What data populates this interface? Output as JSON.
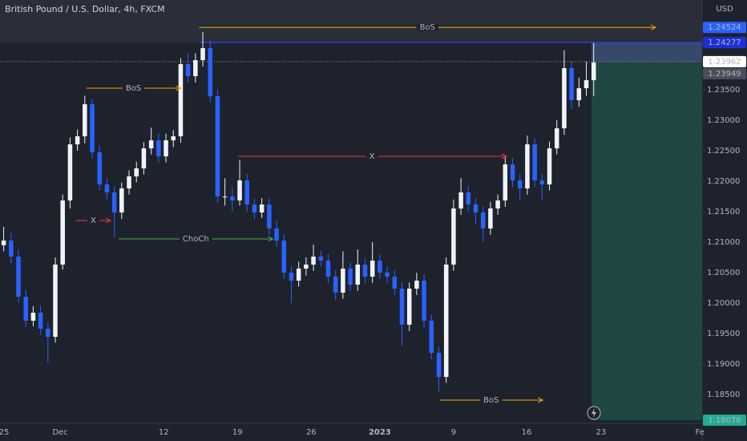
{
  "chart_data": {
    "type": "candlestick",
    "title": "British Pound / U.S. Dollar, 4h, FXCM",
    "y_axis_label": "USD",
    "up_color": "#f0f3fa",
    "down_color": "#2962ff",
    "xlim": [
      -0.5,
      94.7
    ],
    "ylim": [
      1.18026,
      1.24974
    ],
    "xticks": [
      {
        "value": 0.04,
        "label": "25"
      },
      {
        "value": 7.65,
        "label": "Dec"
      },
      {
        "value": 21.7,
        "label": "12"
      },
      {
        "value": 31.7,
        "label": "19"
      },
      {
        "value": 41.7,
        "label": "26"
      },
      {
        "value": 51.0,
        "label": "2023"
      },
      {
        "value": 61.0,
        "label": "9"
      },
      {
        "value": 70.9,
        "label": "16"
      },
      {
        "value": 81.0,
        "label": "23"
      },
      {
        "value": 94.4,
        "label": "Fe"
      }
    ],
    "yticks": [
      {
        "value": 1.185,
        "label": "1.18500"
      },
      {
        "value": 1.19,
        "label": "1.19000"
      },
      {
        "value": 1.195,
        "label": "1.19500"
      },
      {
        "value": 1.2,
        "label": "1.20000"
      },
      {
        "value": 1.205,
        "label": "1.20500"
      },
      {
        "value": 1.21,
        "label": "1.21000"
      },
      {
        "value": 1.215,
        "label": "1.21500"
      },
      {
        "value": 1.22,
        "label": "1.22000"
      },
      {
        "value": 1.225,
        "label": "1.22500"
      },
      {
        "value": 1.23,
        "label": "1.23000"
      },
      {
        "value": 1.235,
        "label": "1.23500"
      }
    ],
    "candles": [
      [
        1.2095,
        1.2125,
        1.2085,
        1.21026
      ],
      [
        1.21026,
        1.2115,
        1.2065,
        1.20763
      ],
      [
        1.20763,
        1.2088,
        1.2,
        1.20105
      ],
      [
        1.20105,
        1.2021,
        1.196,
        1.19711
      ],
      [
        1.19711,
        1.1995,
        1.1962,
        1.19842
      ],
      [
        1.19842,
        1.1996,
        1.1948,
        1.19579
      ],
      [
        1.19579,
        1.1968,
        1.1902,
        1.19447
      ],
      [
        1.19447,
        1.2075,
        1.1935,
        1.20632
      ],
      [
        1.20632,
        1.2178,
        1.2055,
        1.21684
      ],
      [
        1.21684,
        1.2272,
        1.2155,
        1.22605
      ],
      [
        1.22605,
        1.2285,
        1.225,
        1.22737
      ],
      [
        1.22737,
        1.234,
        1.2262,
        1.23263
      ],
      [
        1.23263,
        1.2335,
        1.2237,
        1.22474
      ],
      [
        1.22474,
        1.2258,
        1.2185,
        1.21947
      ],
      [
        1.21947,
        1.2205,
        1.217,
        1.21816
      ],
      [
        1.21816,
        1.2192,
        1.2108,
        1.21487
      ],
      [
        1.21487,
        1.2198,
        1.2138,
        1.21882
      ],
      [
        1.21882,
        1.2218,
        1.2178,
        1.22079
      ],
      [
        1.22079,
        1.2232,
        1.2198,
        1.22211
      ],
      [
        1.22211,
        1.2264,
        1.2211,
        1.22539
      ],
      [
        1.22539,
        1.2288,
        1.2244,
        1.22671
      ],
      [
        1.22671,
        1.2278,
        1.223,
        1.22408
      ],
      [
        1.22408,
        1.2278,
        1.2231,
        1.22671
      ],
      [
        1.22671,
        1.2284,
        1.2256,
        1.22737
      ],
      [
        1.22737,
        1.2402,
        1.2263,
        1.23921
      ],
      [
        1.23921,
        1.241,
        1.2362,
        1.23724
      ],
      [
        1.23724,
        1.241,
        1.2362,
        1.23987
      ],
      [
        1.23987,
        1.2445,
        1.2388,
        1.24184
      ],
      [
        1.24184,
        1.243,
        1.2329,
        1.23395
      ],
      [
        1.23395,
        1.235,
        1.2165,
        1.2175
      ],
      [
        1.2175,
        1.2205,
        1.216,
        1.2175
      ],
      [
        1.2175,
        1.219,
        1.215,
        1.21684
      ],
      [
        1.21684,
        1.2235,
        1.216,
        1.22013
      ],
      [
        1.22013,
        1.2212,
        1.215,
        1.21618
      ],
      [
        1.21618,
        1.2172,
        1.2138,
        1.21487
      ],
      [
        1.21487,
        1.2172,
        1.214,
        1.21618
      ],
      [
        1.21618,
        1.2172,
        1.2112,
        1.21224
      ],
      [
        1.21224,
        1.2135,
        1.2092,
        1.21026
      ],
      [
        1.21026,
        1.2113,
        1.204,
        1.205
      ],
      [
        1.205,
        1.206,
        1.2,
        1.20368
      ],
      [
        1.20368,
        1.2068,
        1.2027,
        1.20566
      ],
      [
        1.20566,
        1.2075,
        1.2045,
        1.20632
      ],
      [
        1.20632,
        1.2096,
        1.2053,
        1.20763
      ],
      [
        1.20763,
        1.2086,
        1.206,
        1.20697
      ],
      [
        1.20697,
        1.208,
        1.2033,
        1.20434
      ],
      [
        1.20434,
        1.2054,
        1.2005,
        1.20171
      ],
      [
        1.20171,
        1.2085,
        1.2007,
        1.20566
      ],
      [
        1.20566,
        1.2067,
        1.202,
        1.20303
      ],
      [
        1.20303,
        1.2088,
        1.202,
        1.20632
      ],
      [
        1.20632,
        1.2073,
        1.2033,
        1.20434
      ],
      [
        1.20434,
        1.21,
        1.2033,
        1.20697
      ],
      [
        1.20697,
        1.208,
        1.204,
        1.205
      ],
      [
        1.205,
        1.206,
        1.2033,
        1.20434
      ],
      [
        1.20434,
        1.2054,
        1.2013,
        1.20237
      ],
      [
        1.20237,
        1.2034,
        1.193,
        1.19645
      ],
      [
        1.19645,
        1.2034,
        1.1954,
        1.20237
      ],
      [
        1.20237,
        1.205,
        1.2013,
        1.20368
      ],
      [
        1.20368,
        1.2047,
        1.196,
        1.19711
      ],
      [
        1.19711,
        1.1981,
        1.1908,
        1.19184
      ],
      [
        1.19184,
        1.1929,
        1.1855,
        1.18789
      ],
      [
        1.18789,
        1.2075,
        1.1869,
        1.20632
      ],
      [
        1.20632,
        1.217,
        1.2053,
        1.21553
      ],
      [
        1.21553,
        1.2205,
        1.2145,
        1.21816
      ],
      [
        1.21816,
        1.2192,
        1.215,
        1.21618
      ],
      [
        1.21618,
        1.2172,
        1.213,
        1.21487
      ],
      [
        1.21487,
        1.2159,
        1.21,
        1.21224
      ],
      [
        1.21224,
        1.2166,
        1.2112,
        1.21553
      ],
      [
        1.21553,
        1.2178,
        1.2145,
        1.21684
      ],
      [
        1.21684,
        1.224,
        1.2158,
        1.22276
      ],
      [
        1.22276,
        1.2238,
        1.219,
        1.22013
      ],
      [
        1.22013,
        1.2212,
        1.2168,
        1.21882
      ],
      [
        1.21882,
        1.2275,
        1.2178,
        1.22605
      ],
      [
        1.22605,
        1.2271,
        1.219,
        1.22013
      ],
      [
        1.22013,
        1.2212,
        1.217,
        1.21947
      ],
      [
        1.21947,
        1.2265,
        1.2185,
        1.22539
      ],
      [
        1.22539,
        1.23,
        1.2244,
        1.22868
      ],
      [
        1.22868,
        1.2415,
        1.2276,
        1.23855
      ],
      [
        1.23855,
        1.2396,
        1.2318,
        1.23329
      ],
      [
        1.23329,
        1.237,
        1.2322,
        1.23526
      ],
      [
        1.23526,
        1.2396,
        1.234,
        1.23658
      ],
      [
        1.23658,
        1.2427,
        1.234,
        1.23949
      ]
    ],
    "annotations": [
      {
        "text": "BoS",
        "price": 1.24524,
        "from": 26.5,
        "to": 88.4,
        "color": "#f7a600"
      },
      {
        "text": "BoS",
        "price": 1.23526,
        "from": 11.2,
        "to": 24.0,
        "color": "#f7a600"
      },
      {
        "text": "X",
        "price": 1.22408,
        "from": 31.7,
        "to": 68.2,
        "color": "#f23645"
      },
      {
        "text": "X",
        "price": 1.21355,
        "from": 9.8,
        "to": 14.5,
        "color": "#f23645"
      },
      {
        "text": "ChoCh",
        "price": 1.21053,
        "from": 15.6,
        "to": 36.5,
        "color": "#4caf50"
      },
      {
        "text": "BoS",
        "price": 1.18408,
        "from": 59.1,
        "to": 73.1,
        "color": "#f7a600"
      }
    ],
    "levels": [
      {
        "value": 1.24277,
        "from": 26.5,
        "color": "#2a3ad8",
        "style": "solid"
      },
      {
        "value": 1.23962,
        "from": -0.5,
        "color": "#9598a1",
        "style": "dotted"
      }
    ],
    "position": {
      "from": 79.7,
      "entry": 1.23962,
      "stop": 1.24277,
      "target": 1.18078,
      "profit_color": "#1f4744",
      "loss_color": "#3d4f77"
    },
    "price_labels": [
      {
        "value": 1.24524,
        "bg": "#2962ff",
        "fg": "#ffffff"
      },
      {
        "value": 1.24277,
        "bg": "#1c2fd9",
        "fg": "#ffffff"
      },
      {
        "value": 1.23962,
        "bg": "#ffffff",
        "fg": "#131722"
      },
      {
        "value": 1.23949,
        "bg": "#4a4e59",
        "fg": "#ffffff"
      },
      {
        "value": 1.18078,
        "bg": "#22ab94",
        "fg": "#ffffff"
      }
    ]
  }
}
